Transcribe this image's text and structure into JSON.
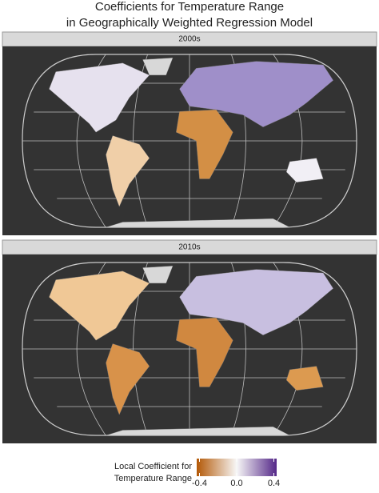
{
  "title": [
    "Coefficients for Temperature Range",
    "in Geographically Weighted Regression Model"
  ],
  "panels": [
    {
      "label": "2000s"
    },
    {
      "label": "2010s"
    }
  ],
  "legend": {
    "title": [
      "Local Coefficient for",
      "Temperature Range"
    ],
    "lim": [
      -0.43,
      0.43
    ],
    "colors": [
      "#b35806",
      "#f7f7f7",
      "#542788"
    ],
    "ticks": [
      -0.4,
      {
        "value": 0,
        "label": "0.0"
      },
      0.4
    ]
  }
}
